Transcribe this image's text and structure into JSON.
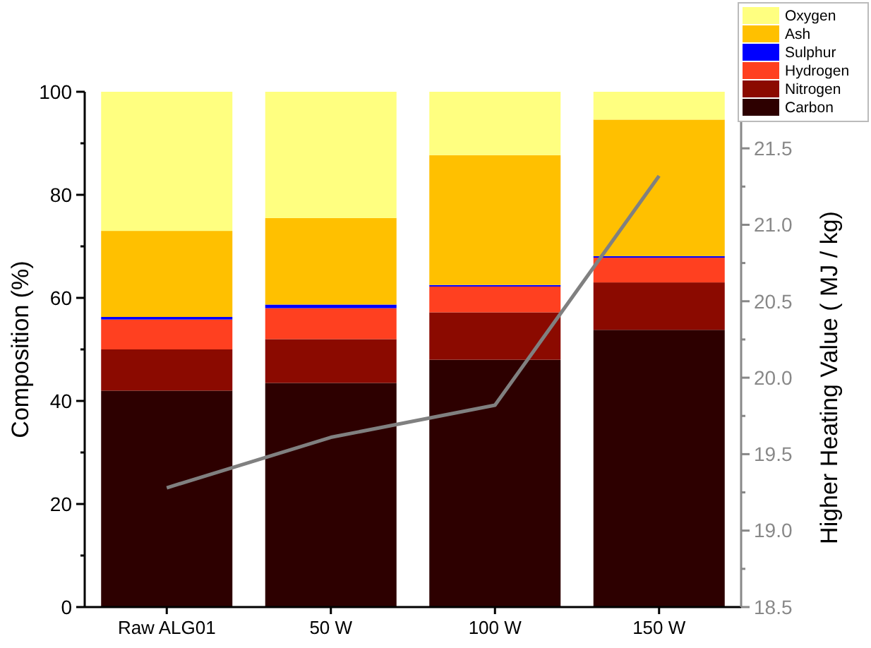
{
  "chart_data": {
    "type": "bar",
    "stacked": true,
    "categories": [
      "Raw ALG01",
      "50 W",
      "100 W",
      "150 W"
    ],
    "ylabel": "Composition (%)",
    "y2label": "Higher Heating Value ( MJ / kg)",
    "ylim": [
      0,
      100
    ],
    "yticks": [
      0,
      {
        "value": 10,
        "label": null
      },
      20,
      {
        "value": 30,
        "label": null
      },
      40,
      {
        "value": 50,
        "label": null
      },
      60,
      {
        "value": 70,
        "label": null
      },
      80,
      {
        "value": 90,
        "label": null
      },
      100
    ],
    "y2lim": [
      18.5,
      21.87
    ],
    "y2ticks": [
      18.5,
      {
        "value": 18.75,
        "label": null
      },
      {
        "value": 19,
        "label": "19.0"
      },
      {
        "value": 19.25,
        "label": null
      },
      19.5,
      {
        "value": 19.75,
        "label": null
      },
      {
        "value": 20,
        "label": "20.0"
      },
      {
        "value": 20.25,
        "label": null
      },
      20.5,
      {
        "value": 20.75,
        "label": null
      },
      {
        "value": 21,
        "label": "21.0"
      },
      {
        "value": 21.25,
        "label": null
      },
      21.5,
      {
        "value": 21.75,
        "label": null
      }
    ],
    "legend": "top right",
    "grid": false,
    "series": [
      {
        "name": "Carbon",
        "color": "#2d0000",
        "values": [
          42,
          43.5,
          48,
          53.8
        ]
      },
      {
        "name": "Nitrogen",
        "color": "#8b0a00",
        "values": [
          8,
          8.5,
          9.2,
          9.2
        ]
      },
      {
        "name": "Hydrogen",
        "color": "#ff4020",
        "values": [
          5.8,
          6,
          5,
          4.8
        ]
      },
      {
        "name": "Sulphur",
        "color": "#0000ff",
        "values": [
          0.5,
          0.7,
          0.3,
          0.3
        ]
      },
      {
        "name": "Ash",
        "color": "#ffc000",
        "values": [
          16.7,
          16.8,
          25.2,
          26.5
        ]
      },
      {
        "name": "Oxygen",
        "color": "#ffff80",
        "values": [
          27,
          24.5,
          12.3,
          5.4
        ]
      },
      {
        "type": "line",
        "axis": "y2",
        "color": "#808080",
        "marker": "none",
        "line_style": "solid",
        "values": [
          19.28,
          19.61,
          19.82,
          21.32
        ]
      }
    ]
  }
}
